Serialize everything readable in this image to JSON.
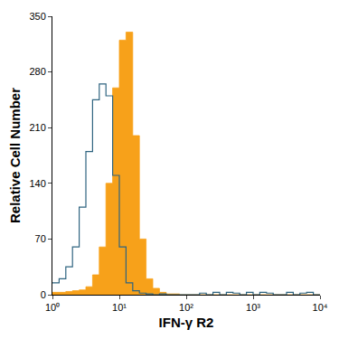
{
  "chart_data": {
    "type": "histogram",
    "x_label": "IFN-γ R2",
    "y_label": "Relative Cell Number",
    "log": "x",
    "grid": false,
    "bins": [
      1,
      1.259,
      1.585,
      1.995,
      2.512,
      3.162,
      3.981,
      5.012,
      6.31,
      7.943,
      10,
      12.59,
      15.85,
      19.95,
      25.12,
      31.62,
      39.81,
      50.12,
      63.1,
      79.43,
      100,
      125.9,
      158.5,
      199.5,
      251.2,
      316.2,
      398.1,
      501.2,
      631,
      794.3,
      1000,
      1259,
      1585,
      1995,
      2512,
      3162,
      3981,
      5012,
      6310,
      7943,
      10000
    ],
    "series": [
      {
        "type": "area",
        "color": "#f7a11a",
        "values": [
          3,
          3,
          4,
          5,
          6,
          10,
          25,
          60,
          140,
          260,
          320,
          330,
          200,
          70,
          20,
          8,
          3,
          1,
          1,
          0,
          0,
          0,
          0,
          0,
          0,
          0,
          0,
          0,
          0,
          0,
          0,
          0,
          0,
          0,
          0,
          0,
          0,
          0,
          0,
          0
        ]
      },
      {
        "type": "line",
        "color": "#2f6480",
        "values": [
          15,
          20,
          35,
          60,
          110,
          180,
          245,
          265,
          250,
          150,
          60,
          15,
          5,
          2,
          1,
          0,
          1,
          0,
          0,
          0,
          0,
          0,
          2,
          0,
          3,
          0,
          3,
          2,
          0,
          3,
          0,
          3,
          2,
          0,
          0,
          3,
          0,
          2,
          3,
          0
        ]
      }
    ],
    "xlim": [
      1,
      10000
    ],
    "xticks": [
      {
        "value": 1,
        "label": "10⁰"
      },
      {
        "value": 10,
        "label": "10¹"
      },
      {
        "value": 100,
        "label": "10²"
      },
      {
        "value": 1000,
        "label": "10³"
      },
      {
        "value": 10000,
        "label": "10⁴"
      }
    ],
    "ylim": [
      0,
      350
    ],
    "yticks": [
      0,
      70,
      140,
      210,
      280,
      350
    ]
  }
}
